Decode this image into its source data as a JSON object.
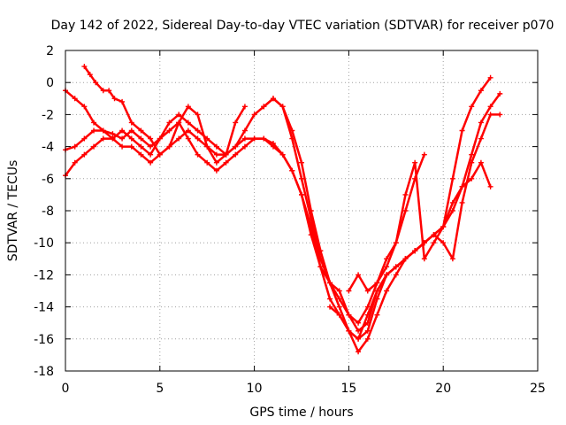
{
  "chart_data": {
    "type": "scatter",
    "title": "Day 142 of 2022, Sidereal Day-to-day VTEC variation (SDTVAR) for receiver p070",
    "xlabel": "GPS time / hours",
    "ylabel": "SDTVAR / TECUs",
    "xlim": [
      0,
      25
    ],
    "ylim": [
      -18,
      2
    ],
    "xticks": [
      0,
      5,
      10,
      15,
      20,
      25
    ],
    "yticks": [
      -18,
      -16,
      -14,
      -12,
      -10,
      -8,
      -6,
      -4,
      -2,
      0,
      2
    ],
    "grid": true,
    "marker": "plus",
    "color": "#ff0000",
    "series": [
      {
        "x": [
          0,
          0.5,
          1.0,
          1.5,
          2.0,
          2.5,
          3.0,
          3.5,
          4.0,
          4.5,
          5.0,
          5.5,
          6.0,
          6.5,
          7.0,
          7.5,
          8.0,
          8.5,
          9.0,
          9.5,
          10.0,
          10.5,
          11.0,
          11.5,
          12.0,
          12.5,
          13.0,
          13.5,
          14.0,
          14.5,
          15.0,
          15.5,
          16.0,
          16.5,
          17.0,
          17.5,
          18.0,
          18.5,
          19.0
        ],
        "y": [
          -0.5,
          -1.0,
          -1.5,
          -2.5,
          -3.0,
          -3.5,
          -3.0,
          -3.5,
          -4.0,
          -4.5,
          -3.5,
          -3.0,
          -2.5,
          -3.5,
          -4.5,
          -5.0,
          -5.5,
          -5.0,
          -4.5,
          -4.0,
          -3.5,
          -3.5,
          -3.8,
          -4.5,
          -5.5,
          -7.0,
          -9.5,
          -11.5,
          -13.5,
          -14.5,
          -15.5,
          -16.0,
          -14.5,
          -13.0,
          -12.0,
          -11.5,
          -11.0,
          -10.5,
          -10.0
        ]
      },
      {
        "x": [
          0,
          0.5,
          1.0,
          1.5,
          2.0,
          2.5,
          3.0,
          3.5,
          4.0,
          4.5,
          5.0,
          5.5,
          6.0,
          6.5,
          7.0,
          7.5,
          8.0,
          8.5,
          9.0,
          9.5,
          10.0,
          10.5,
          11.0,
          11.5,
          12.0,
          12.5,
          13.0,
          13.5,
          14.0,
          14.5,
          15.0,
          15.5,
          16.0,
          16.5,
          17.0,
          17.5,
          18.0,
          18.5,
          19.0,
          19.5,
          20.0,
          20.5,
          21.0,
          21.5,
          22.0,
          22.5
        ],
        "y": [
          -5.8,
          -5.0,
          -4.5,
          -4.0,
          -3.5,
          -3.5,
          -4.0,
          -4.0,
          -4.5,
          -5.0,
          -4.5,
          -4.0,
          -3.5,
          -3.0,
          -3.5,
          -4.0,
          -4.5,
          -4.5,
          -4.0,
          -3.5,
          -3.5,
          -3.5,
          -4.0,
          -4.5,
          -5.5,
          -7.0,
          -9.0,
          -11.5,
          -12.5,
          -14.0,
          -15.5,
          -16.8,
          -16.0,
          -14.5,
          -13.0,
          -12.0,
          -11.0,
          -10.5,
          -10.0,
          -9.5,
          -9.0,
          -8.0,
          -6.5,
          -6.0,
          -5.0,
          -6.5
        ]
      },
      {
        "x": [
          0,
          0.5,
          1.0,
          1.5,
          2.0,
          2.5,
          3.0,
          3.5,
          4.0,
          4.5,
          5.0,
          5.5,
          6.0,
          6.5,
          7.0,
          7.5,
          8.0,
          8.5,
          9.0,
          9.5,
          10.0,
          10.5,
          11.0,
          11.5,
          12.0,
          12.5,
          13.0,
          13.5,
          14.0,
          14.5,
          15.0,
          15.5,
          16.0,
          16.5,
          17.0,
          17.5,
          18.0,
          18.5,
          19.0
        ],
        "y": [
          -4.2,
          -4.0,
          -3.5,
          -3.0,
          -3.0,
          -3.2,
          -3.5,
          -3.0,
          -3.5,
          -4.0,
          -3.5,
          -2.5,
          -2.0,
          -2.5,
          -3.0,
          -3.5,
          -4.0,
          -4.5,
          -4.0,
          -3.0,
          -2.0,
          -1.5,
          -1.0,
          -1.5,
          -3.5,
          -6.0,
          -8.5,
          -11.0,
          -12.5,
          -13.0,
          -14.5,
          -15.0,
          -14.0,
          -12.5,
          -11.0,
          -10.0,
          -8.0,
          -6.0,
          -4.5
        ]
      },
      {
        "x": [
          1.0,
          1.3,
          1.6,
          2.0,
          2.3,
          2.6,
          3.0,
          3.5,
          4.0,
          4.5,
          5.0,
          5.5,
          6.0,
          6.5,
          7.0,
          7.5,
          8.0,
          8.5,
          9.0,
          9.5
        ],
        "y": [
          1.0,
          0.5,
          0.0,
          -0.5,
          -0.5,
          -1.0,
          -1.2,
          -2.5,
          -3.0,
          -3.5,
          -4.5,
          -4.0,
          -2.5,
          -1.5,
          -2.0,
          -4.0,
          -5.0,
          -4.5,
          -2.5,
          -1.5
        ]
      },
      {
        "x": [
          10.5,
          11.0,
          11.5,
          12.0,
          12.5,
          13.0,
          13.5,
          14.0,
          14.5,
          15.0,
          15.5,
          16.0,
          16.5,
          17.0,
          17.5,
          18.0,
          18.5,
          19.0,
          19.5,
          20.0,
          20.5,
          21.0,
          21.5,
          22.0,
          22.5
        ],
        "y": [
          -1.5,
          -1.0,
          -1.5,
          -3.0,
          -5.0,
          -8.0,
          -10.5,
          -12.5,
          -13.5,
          -14.5,
          -15.5,
          -15.0,
          -13.0,
          -12.0,
          -11.5,
          -11.0,
          -10.5,
          -10.0,
          -9.5,
          -9.0,
          -6.0,
          -3.0,
          -1.5,
          -0.5,
          0.3
        ]
      },
      {
        "x": [
          14.0,
          14.5,
          15.0,
          15.5,
          16.0,
          16.5,
          17.0,
          17.5,
          18.0,
          18.5,
          19.0,
          19.5,
          20.0,
          20.5,
          21.0,
          21.5,
          22.0,
          22.5,
          23.0
        ],
        "y": [
          -14.0,
          -14.5,
          -15.5,
          -16.0,
          -15.5,
          -13.5,
          -12.0,
          -11.5,
          -11.0,
          -10.5,
          -10.0,
          -9.5,
          -10.0,
          -11.0,
          -7.5,
          -5.0,
          -3.5,
          -2.0,
          -2.0
        ]
      },
      {
        "x": [
          15.0,
          15.5,
          16.0,
          16.5,
          17.0,
          17.5,
          18.0,
          18.5,
          19.0,
          19.5,
          20.0,
          20.5,
          21.0,
          21.5,
          22.0,
          22.5,
          23.0
        ],
        "y": [
          -13.0,
          -12.0,
          -13.0,
          -12.5,
          -11.5,
          -10.0,
          -7.0,
          -5.0,
          -11.0,
          -10.0,
          -9.0,
          -7.5,
          -6.5,
          -4.5,
          -2.5,
          -1.5,
          -0.7
        ]
      }
    ]
  }
}
